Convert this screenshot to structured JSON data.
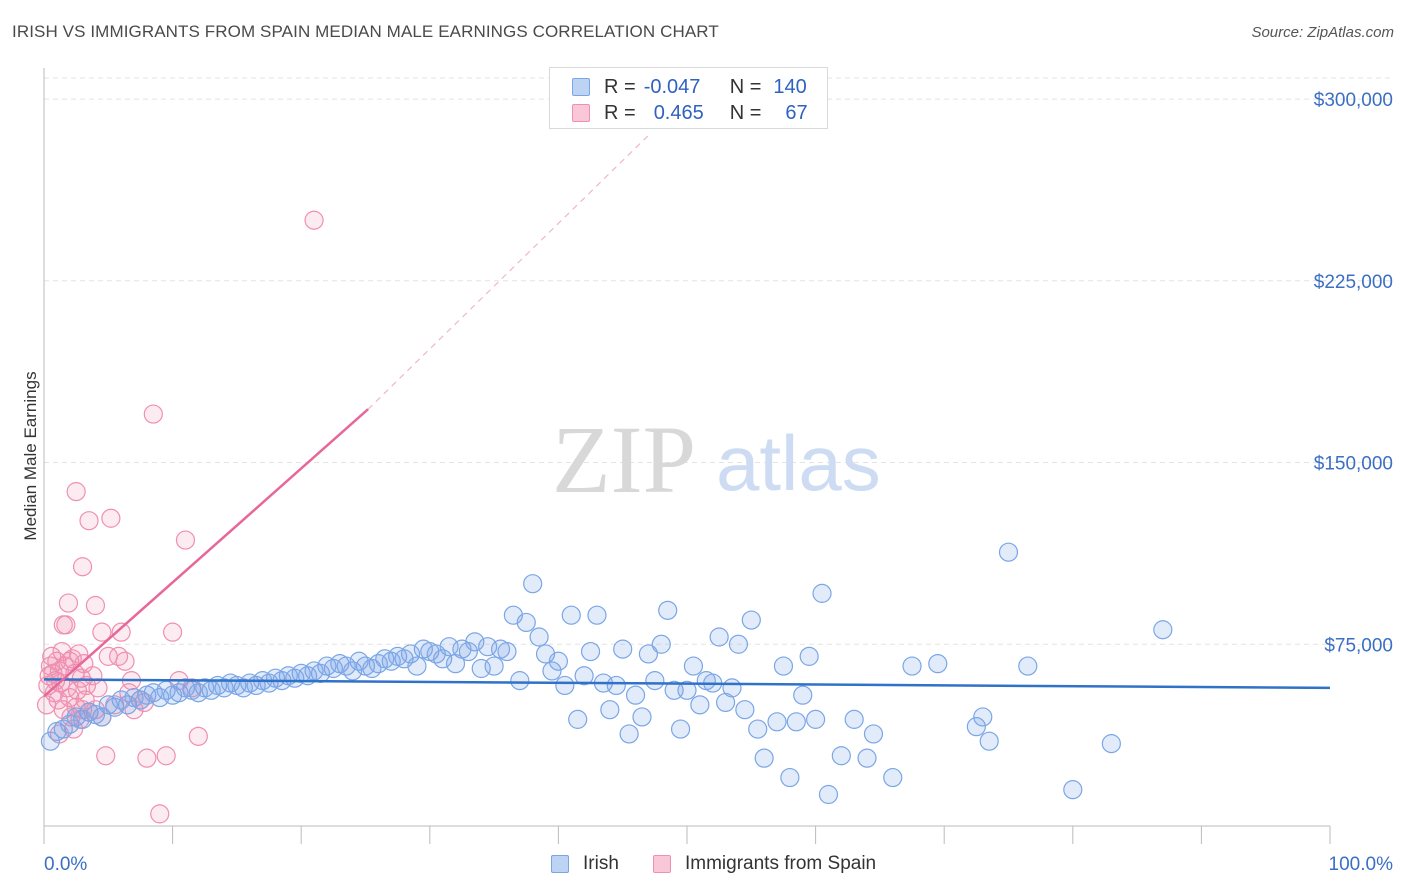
{
  "title": "IRISH VS IMMIGRANTS FROM SPAIN MEDIAN MALE EARNINGS CORRELATION CHART",
  "source": "Source: ZipAtlas.com",
  "watermark": {
    "zip": "ZIP",
    "atlas": "atlas"
  },
  "legend": {
    "r_label": "R =",
    "n_label": "N =",
    "irish": {
      "r": "-0.047",
      "n": "140"
    },
    "spain": {
      "r": "0.465",
      "n": "67"
    }
  },
  "bottom_legend": {
    "irish": "Irish",
    "spain": "Immigrants from Spain"
  },
  "chart_data": {
    "type": "scatter",
    "title": "IRISH VS IMMIGRANTS FROM SPAIN MEDIAN MALE EARNINGS CORRELATION CHART",
    "ylabel": "Median Male Earnings",
    "xlabel": "",
    "xlim": [
      0,
      100
    ],
    "ylim": [
      0,
      312000
    ],
    "x_ticks": [
      {
        "value": 0,
        "label": "0.0%"
      },
      {
        "value": 100,
        "label": "100.0%"
      }
    ],
    "y_ticks": [
      {
        "value": 75000,
        "label": "$75,000"
      },
      {
        "value": 150000,
        "label": "$150,000"
      },
      {
        "value": 225000,
        "label": "$225,000"
      },
      {
        "value": 300000,
        "label": "$300,000"
      }
    ],
    "colors": {
      "irish": "#7aa6e6",
      "spain": "#f08fb0",
      "irish_line": "#2f72c8",
      "spain_line": "#e8679a",
      "grid": "#e3e3e3",
      "tick_color": "#3b6fc4"
    },
    "trend_lines": {
      "irish": {
        "x": [
          0,
          100
        ],
        "y": [
          60500,
          57000
        ]
      },
      "spain": {
        "x": [
          0,
          25.2
        ],
        "y": [
          53500,
          172000
        ],
        "dashed_x": [
          25.2,
          47
        ],
        "dashed_y": [
          172000,
          285000
        ]
      }
    },
    "series": [
      {
        "name": "Irish",
        "points": [
          [
            0.5,
            35000
          ],
          [
            1.0,
            39000
          ],
          [
            1.5,
            40000
          ],
          [
            2.0,
            42000
          ],
          [
            2.5,
            45000
          ],
          [
            3.0,
            44000
          ],
          [
            3.5,
            47000
          ],
          [
            4.0,
            46000
          ],
          [
            4.5,
            45000
          ],
          [
            5.0,
            50000
          ],
          [
            5.5,
            49000
          ],
          [
            6.0,
            52000
          ],
          [
            6.5,
            50000
          ],
          [
            7.0,
            53000
          ],
          [
            7.5,
            52000
          ],
          [
            8.0,
            54000
          ],
          [
            8.5,
            55000
          ],
          [
            9.0,
            53000
          ],
          [
            9.5,
            56000
          ],
          [
            10.0,
            54000
          ],
          [
            10.5,
            55000
          ],
          [
            11.0,
            57000
          ],
          [
            11.5,
            56000
          ],
          [
            12.0,
            55000
          ],
          [
            12.5,
            57000
          ],
          [
            13.0,
            56000
          ],
          [
            13.5,
            58000
          ],
          [
            14.0,
            57000
          ],
          [
            14.5,
            59000
          ],
          [
            15.0,
            58000
          ],
          [
            15.5,
            57000
          ],
          [
            16.0,
            59000
          ],
          [
            16.5,
            58000
          ],
          [
            17.0,
            60000
          ],
          [
            17.5,
            59000
          ],
          [
            18.0,
            61000
          ],
          [
            18.5,
            60000
          ],
          [
            19.0,
            62000
          ],
          [
            19.5,
            61000
          ],
          [
            20.0,
            63000
          ],
          [
            20.5,
            62000
          ],
          [
            21.0,
            64000
          ],
          [
            21.5,
            63000
          ],
          [
            22.0,
            66000
          ],
          [
            22.5,
            65000
          ],
          [
            23.0,
            67000
          ],
          [
            23.5,
            66000
          ],
          [
            24.0,
            64000
          ],
          [
            24.5,
            68000
          ],
          [
            25.0,
            66000
          ],
          [
            25.5,
            65000
          ],
          [
            26.0,
            67000
          ],
          [
            26.5,
            69000
          ],
          [
            27.0,
            68000
          ],
          [
            27.5,
            70000
          ],
          [
            28.0,
            69000
          ],
          [
            28.5,
            71000
          ],
          [
            29.0,
            66000
          ],
          [
            29.5,
            73000
          ],
          [
            30.0,
            72000
          ],
          [
            30.5,
            71000
          ],
          [
            31.0,
            69000
          ],
          [
            31.5,
            74000
          ],
          [
            32.0,
            67000
          ],
          [
            32.5,
            73000
          ],
          [
            33.0,
            72000
          ],
          [
            33.5,
            76000
          ],
          [
            34.0,
            65000
          ],
          [
            34.5,
            74000
          ],
          [
            35.0,
            66000
          ],
          [
            35.5,
            73000
          ],
          [
            36.0,
            72000
          ],
          [
            36.5,
            87000
          ],
          [
            37.0,
            60000
          ],
          [
            37.5,
            84000
          ],
          [
            38.0,
            100000
          ],
          [
            38.5,
            78000
          ],
          [
            39.0,
            71000
          ],
          [
            39.5,
            64000
          ],
          [
            40.0,
            68000
          ],
          [
            40.5,
            58000
          ],
          [
            41.0,
            87000
          ],
          [
            41.5,
            44000
          ],
          [
            42.0,
            62000
          ],
          [
            42.5,
            72000
          ],
          [
            43.0,
            87000
          ],
          [
            43.5,
            59000
          ],
          [
            44.0,
            48000
          ],
          [
            44.5,
            58000
          ],
          [
            45.0,
            73000
          ],
          [
            45.5,
            38000
          ],
          [
            46.0,
            54000
          ],
          [
            46.5,
            45000
          ],
          [
            47.0,
            71000
          ],
          [
            47.5,
            60000
          ],
          [
            48.0,
            75000
          ],
          [
            48.5,
            89000
          ],
          [
            49.0,
            56000
          ],
          [
            49.5,
            40000
          ],
          [
            50.0,
            56000
          ],
          [
            50.5,
            66000
          ],
          [
            51.0,
            50000
          ],
          [
            51.5,
            60000
          ],
          [
            52.0,
            59000
          ],
          [
            52.5,
            78000
          ],
          [
            53.0,
            51000
          ],
          [
            53.5,
            57000
          ],
          [
            54.0,
            75000
          ],
          [
            54.5,
            48000
          ],
          [
            55.0,
            85000
          ],
          [
            55.5,
            40000
          ],
          [
            56.0,
            28000
          ],
          [
            57.0,
            43000
          ],
          [
            57.5,
            66000
          ],
          [
            58.0,
            20000
          ],
          [
            58.5,
            43000
          ],
          [
            59.0,
            54000
          ],
          [
            59.5,
            70000
          ],
          [
            60.0,
            44000
          ],
          [
            60.5,
            96000
          ],
          [
            61.0,
            13000
          ],
          [
            62.0,
            29000
          ],
          [
            63.0,
            44000
          ],
          [
            64.0,
            28000
          ],
          [
            64.5,
            38000
          ],
          [
            66.0,
            20000
          ],
          [
            67.5,
            66000
          ],
          [
            69.5,
            67000
          ],
          [
            72.5,
            41000
          ],
          [
            73.0,
            45000
          ],
          [
            73.5,
            35000
          ],
          [
            75.0,
            113000
          ],
          [
            76.5,
            66000
          ],
          [
            80.0,
            15000
          ],
          [
            83.0,
            34000
          ],
          [
            87.0,
            81000
          ]
        ]
      },
      {
        "name": "Immigrants from Spain",
        "points": [
          [
            0.2,
            50000
          ],
          [
            0.3,
            58000
          ],
          [
            0.4,
            62000
          ],
          [
            0.5,
            66000
          ],
          [
            0.6,
            70000
          ],
          [
            0.7,
            63000
          ],
          [
            0.8,
            55000
          ],
          [
            0.9,
            60000
          ],
          [
            1.0,
            68000
          ],
          [
            1.1,
            52000
          ],
          [
            1.2,
            64000
          ],
          [
            1.3,
            59000
          ],
          [
            1.4,
            72000
          ],
          [
            1.5,
            48000
          ],
          [
            1.6,
            66000
          ],
          [
            1.7,
            83000
          ],
          [
            1.8,
            57000
          ],
          [
            1.9,
            92000
          ],
          [
            2.0,
            53000
          ],
          [
            2.1,
            45000
          ],
          [
            2.2,
            69000
          ],
          [
            2.3,
            40000
          ],
          [
            2.4,
            63000
          ],
          [
            2.5,
            49000
          ],
          [
            2.6,
            56000
          ],
          [
            2.7,
            71000
          ],
          [
            2.8,
            44000
          ],
          [
            2.9,
            61000
          ],
          [
            3.0,
            48000
          ],
          [
            3.1,
            67000
          ],
          [
            3.2,
            52000
          ],
          [
            3.3,
            58000
          ],
          [
            3.5,
            47000
          ],
          [
            3.8,
            62000
          ],
          [
            4.0,
            48000
          ],
          [
            4.2,
            57000
          ],
          [
            1.2,
            38000
          ],
          [
            1.5,
            83000
          ],
          [
            4.5,
            45000
          ],
          [
            2.0,
            68000
          ],
          [
            3.5,
            126000
          ],
          [
            2.5,
            138000
          ],
          [
            3.0,
            107000
          ],
          [
            4.0,
            91000
          ],
          [
            4.5,
            80000
          ],
          [
            5.0,
            70000
          ],
          [
            5.2,
            127000
          ],
          [
            5.5,
            50000
          ],
          [
            5.8,
            70000
          ],
          [
            6.0,
            80000
          ],
          [
            6.3,
            68000
          ],
          [
            6.6,
            55000
          ],
          [
            7.0,
            48000
          ],
          [
            7.5,
            52000
          ],
          [
            8.0,
            28000
          ],
          [
            8.5,
            170000
          ],
          [
            9.0,
            5000
          ],
          [
            9.5,
            29000
          ],
          [
            10.0,
            80000
          ],
          [
            10.5,
            60000
          ],
          [
            11.0,
            118000
          ],
          [
            11.5,
            57000
          ],
          [
            12.0,
            37000
          ],
          [
            21.0,
            250000
          ],
          [
            4.8,
            29000
          ],
          [
            6.8,
            60000
          ],
          [
            7.8,
            51000
          ]
        ]
      }
    ]
  }
}
